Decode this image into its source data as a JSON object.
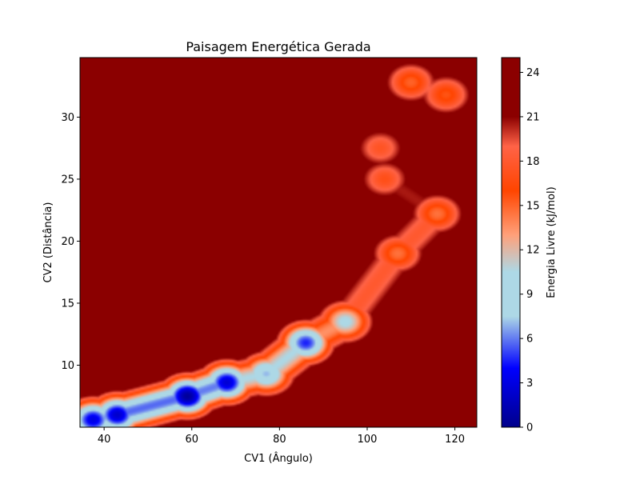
{
  "chart_data": {
    "type": "heatmap",
    "title": "Paisagem Energética Gerada",
    "xlabel": "CV1 (Ângulo)",
    "ylabel": "CV2 (Distância)",
    "xlim": [
      34.5,
      125
    ],
    "ylim": [
      5,
      34.8
    ],
    "x_ticks": [
      40,
      60,
      80,
      100,
      120
    ],
    "y_ticks": [
      10,
      15,
      20,
      25,
      30
    ],
    "colorbar": {
      "label": "Energia Livre (kJ/mol)",
      "range": [
        0,
        25
      ],
      "ticks": [
        0,
        3,
        6,
        9,
        12,
        15,
        18,
        21,
        24
      ],
      "stops": [
        {
          "value": 0,
          "color": "#00008b"
        },
        {
          "value": 4,
          "color": "#0000ff"
        },
        {
          "value": 7.5,
          "color": "#add8e6"
        },
        {
          "value": 10.5,
          "color": "#add8e6"
        },
        {
          "value": 13,
          "color": "#ffa07a"
        },
        {
          "value": 16,
          "color": "#ff4500"
        },
        {
          "value": 19,
          "color": "#ff6347"
        },
        {
          "value": 21,
          "color": "#8b0000"
        },
        {
          "value": 25,
          "color": "#8b0000"
        }
      ]
    },
    "background_value": 25,
    "minima": [
      {
        "x": 37.5,
        "y": 5.6,
        "energy": 3.0
      },
      {
        "x": 43,
        "y": 6.0,
        "energy": 2.2
      },
      {
        "x": 59,
        "y": 7.5,
        "energy": 0.5
      },
      {
        "x": 68,
        "y": 8.6,
        "energy": 2.5
      },
      {
        "x": 77,
        "y": 9.3,
        "energy": 7.0
      },
      {
        "x": 86,
        "y": 11.8,
        "energy": 4.5
      },
      {
        "x": 95,
        "y": 13.5,
        "energy": 10.0
      },
      {
        "x": 107,
        "y": 19.0,
        "energy": 14.5
      },
      {
        "x": 116,
        "y": 22.2,
        "energy": 14.5
      },
      {
        "x": 104,
        "y": 25.0,
        "energy": 17.0
      },
      {
        "x": 103,
        "y": 27.5,
        "energy": 17.5
      },
      {
        "x": 110,
        "y": 32.8,
        "energy": 15.0
      },
      {
        "x": 118,
        "y": 31.8,
        "energy": 15.5
      }
    ]
  }
}
